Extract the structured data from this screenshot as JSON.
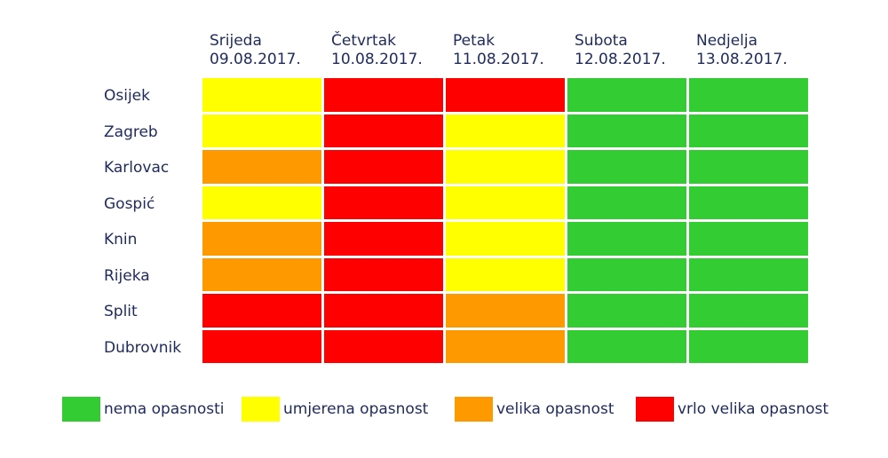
{
  "chart_data": {
    "type": "heatmap",
    "columns": [
      {
        "day": "Srijeda",
        "date": "09.08.2017."
      },
      {
        "day": "Četvrtak",
        "date": "10.08.2017."
      },
      {
        "day": "Petak",
        "date": "11.08.2017."
      },
      {
        "day": "Subota",
        "date": "12.08.2017."
      },
      {
        "day": "Nedjelja",
        "date": "13.08.2017."
      }
    ],
    "rows": [
      "Osijek",
      "Zagreb",
      "Karlovac",
      "Gospić",
      "Knin",
      "Rijeka",
      "Split",
      "Dubrovnik"
    ],
    "values": [
      [
        1,
        3,
        3,
        0,
        0
      ],
      [
        1,
        3,
        1,
        0,
        0
      ],
      [
        2,
        3,
        1,
        0,
        0
      ],
      [
        1,
        3,
        1,
        0,
        0
      ],
      [
        2,
        3,
        1,
        0,
        0
      ],
      [
        2,
        3,
        1,
        0,
        0
      ],
      [
        3,
        3,
        2,
        0,
        0
      ],
      [
        3,
        3,
        2,
        0,
        0
      ]
    ],
    "levels": [
      {
        "level": 0,
        "label": "nema opasnosti",
        "color": "#33cc33"
      },
      {
        "level": 1,
        "label": "umjerena opasnost",
        "color": "#ffff00"
      },
      {
        "level": 2,
        "label": "velika opasnost",
        "color": "#ff9900"
      },
      {
        "level": 3,
        "label": "vrlo velika opasnost",
        "color": "#ff0000"
      }
    ],
    "legend_position": "bottom"
  }
}
